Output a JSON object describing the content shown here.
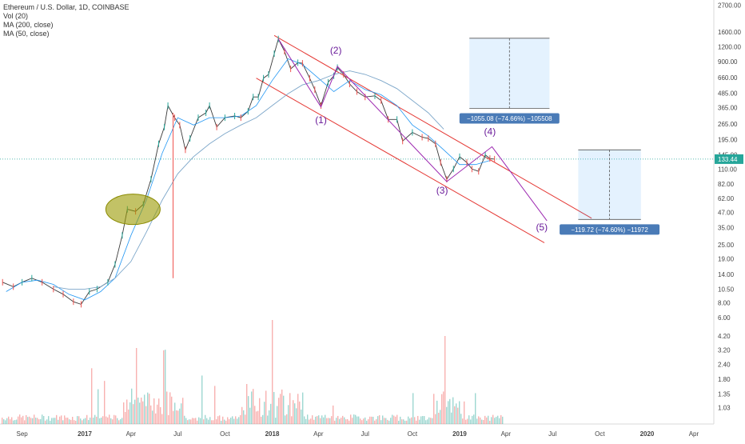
{
  "legend": {
    "symbol": "Ethereum / U.S. Dollar, 1D, COINBASE",
    "vol": "Vol (20)",
    "ma200": "MA (200, close)",
    "ma50": "MA (50, close)"
  },
  "chart_data": {
    "type": "line",
    "title": "Ethereum / U.S. Dollar, 1D, COINBASE",
    "xlabel": "",
    "ylabel": "",
    "y_scale": "log",
    "ylim": [
      0.75,
      3000
    ],
    "x_ticks": [
      "Sep",
      "2017",
      "Apr",
      "Jul",
      "Oct",
      "2018",
      "Apr",
      "Jul",
      "Oct",
      "2019",
      "Apr",
      "Jul",
      "Oct",
      "2020",
      "Apr"
    ],
    "y_ticks": [
      "2700.00",
      "1600.00",
      "1200.00",
      "900.00",
      "660.00",
      "485.00",
      "365.00",
      "265.00",
      "195.00",
      "145.00",
      "110.00",
      "82.00",
      "62.00",
      "47.00",
      "35.00",
      "25.00",
      "19.00",
      "14.00",
      "10.50",
      "8.00",
      "6.00",
      "4.20",
      "3.20",
      "2.40",
      "1.80",
      "1.35",
      "1.03"
    ],
    "last_price": "133.44",
    "series": [
      {
        "name": "Ethereum / U.S. Dollar",
        "x": [
          "2016-07-25",
          "2016-08-15",
          "2016-09-01",
          "2016-09-20",
          "2016-10-10",
          "2016-11-01",
          "2016-11-20",
          "2016-12-10",
          "2016-12-25",
          "2017-01-10",
          "2017-01-25",
          "2017-02-15",
          "2017-03-01",
          "2017-03-15",
          "2017-03-25",
          "2017-04-10",
          "2017-04-25",
          "2017-05-10",
          "2017-05-25",
          "2017-06-05",
          "2017-06-12",
          "2017-06-25",
          "2017-07-05",
          "2017-07-16",
          "2017-07-25",
          "2017-08-10",
          "2017-08-25",
          "2017-09-01",
          "2017-09-15",
          "2017-10-01",
          "2017-10-20",
          "2017-11-01",
          "2017-11-15",
          "2017-11-25",
          "2017-12-05",
          "2017-12-15",
          "2017-12-25",
          "2018-01-05",
          "2018-01-13",
          "2018-01-25",
          "2018-02-06",
          "2018-02-20",
          "2018-03-01",
          "2018-03-15",
          "2018-03-25",
          "2018-04-06",
          "2018-04-20",
          "2018-05-01",
          "2018-05-08",
          "2018-05-20",
          "2018-06-01",
          "2018-06-15",
          "2018-07-01",
          "2018-07-20",
          "2018-08-01",
          "2018-08-15",
          "2018-09-01",
          "2018-09-12",
          "2018-10-01",
          "2018-10-20",
          "2018-11-01",
          "2018-11-15",
          "2018-11-25",
          "2018-12-07",
          "2018-12-20",
          "2019-01-01",
          "2019-01-15",
          "2019-01-25",
          "2019-02-07",
          "2019-02-20",
          "2019-03-01",
          "2019-03-10"
        ],
        "values": [
          12.0,
          11.0,
          12.0,
          13.0,
          12.0,
          10.5,
          9.5,
          8.2,
          7.8,
          10.0,
          10.5,
          12.0,
          17.0,
          30.0,
          50.0,
          48.0,
          55.0,
          90.0,
          180.0,
          250.0,
          380.0,
          300.0,
          260.0,
          160.0,
          200.0,
          300.0,
          330.0,
          380.0,
          250.0,
          300.0,
          310.0,
          300.0,
          340.0,
          450.0,
          450.0,
          650.0,
          700.0,
          1050.0,
          1400.0,
          1100.0,
          780.0,
          880.0,
          870.0,
          650.0,
          520.0,
          380.0,
          600.0,
          680.0,
          800.0,
          700.0,
          580.0,
          500.0,
          450.0,
          460.0,
          420.0,
          290.0,
          290.0,
          190.0,
          225.0,
          205.0,
          200.0,
          180.0,
          125.0,
          90.0,
          110.0,
          140.0,
          125.0,
          110.0,
          105.0,
          145.0,
          135.0,
          133.44
        ]
      },
      {
        "name": "MA (50, close)",
        "x": [
          "2016-08-01",
          "2016-09-01",
          "2016-10-01",
          "2016-11-01",
          "2016-12-01",
          "2017-01-01",
          "2017-02-01",
          "2017-03-01",
          "2017-04-01",
          "2017-05-01",
          "2017-06-01",
          "2017-07-01",
          "2017-08-01",
          "2017-09-01",
          "2017-10-01",
          "2017-11-01",
          "2017-12-01",
          "2018-01-01",
          "2018-02-01",
          "2018-03-01",
          "2018-04-01",
          "2018-05-01",
          "2018-06-01",
          "2018-07-01",
          "2018-08-01",
          "2018-09-01",
          "2018-10-01",
          "2018-11-01",
          "2018-12-01",
          "2019-01-01",
          "2019-02-01",
          "2019-03-01"
        ],
        "values": [
          10.0,
          12.0,
          12.5,
          11.5,
          9.5,
          8.5,
          10.0,
          13.0,
          30.0,
          60.0,
          150.0,
          300.0,
          260.0,
          300.0,
          300.0,
          310.0,
          380.0,
          620.0,
          950.0,
          850.0,
          650.0,
          500.0,
          620.0,
          520.0,
          470.0,
          380.0,
          260.0,
          210.0,
          160.0,
          120.0,
          120.0,
          130.0
        ]
      },
      {
        "name": "MA (200, close)",
        "x": [
          "2016-11-01",
          "2016-12-01",
          "2017-01-01",
          "2017-02-01",
          "2017-03-01",
          "2017-04-01",
          "2017-05-01",
          "2017-06-01",
          "2017-07-01",
          "2017-08-01",
          "2017-09-01",
          "2017-10-01",
          "2017-11-01",
          "2017-12-01",
          "2018-01-01",
          "2018-02-01",
          "2018-03-01",
          "2018-04-01",
          "2018-05-01",
          "2018-06-01",
          "2018-07-01",
          "2018-08-01",
          "2018-09-01",
          "2018-10-01",
          "2018-11-01",
          "2018-12-01"
        ],
        "values": [
          11.0,
          10.5,
          10.5,
          11.0,
          13.0,
          18.0,
          32.0,
          60.0,
          100.0,
          140.0,
          180.0,
          220.0,
          260.0,
          300.0,
          380.0,
          480.0,
          570.0,
          620.0,
          700.0,
          750.0,
          700.0,
          620.0,
          530.0,
          420.0,
          330.0,
          240.0
        ]
      }
    ],
    "annotations": {
      "wave_labels": [
        "(1)",
        "(2)",
        "(3)",
        "(4)",
        "(5)"
      ],
      "measure_top": "−1055.08 (−74.66%) −105508",
      "measure_bottom": "−119.72 (−74.60%) −11972"
    },
    "volume": {
      "name": "Vol (20)",
      "note": "volume histogram bars, relative heights"
    }
  }
}
